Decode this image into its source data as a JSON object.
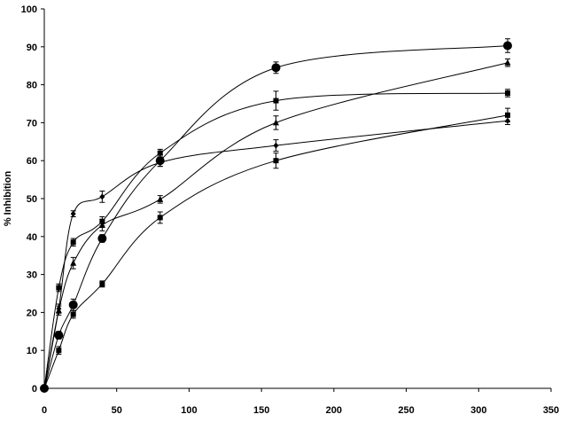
{
  "chart_data": {
    "type": "line",
    "y_label": "% Inhibition",
    "xlim": [
      0,
      350
    ],
    "xticks": [
      0,
      50,
      100,
      150,
      200,
      250,
      300,
      350
    ],
    "ylim": [
      0,
      100
    ],
    "yticks": [
      0,
      10,
      20,
      30,
      40,
      50,
      60,
      70,
      80,
      90,
      100
    ],
    "grid": false,
    "smooth": true,
    "x": [
      0,
      10,
      20,
      40,
      80,
      160,
      320
    ],
    "series": [
      {
        "color": "#000000",
        "marker": "diamond",
        "values": [
          0,
          21,
          46,
          50.5,
          59.5,
          64,
          70.5
        ],
        "errors": [
          0.5,
          1.2,
          0.8,
          1.5,
          1,
          1.5,
          1
        ]
      },
      {
        "color": "#000000",
        "marker": "square",
        "values": [
          0,
          26.5,
          38.5,
          44,
          62,
          75.8,
          77.8
        ],
        "errors": [
          0.5,
          1,
          1,
          1.2,
          1,
          2.5,
          1
        ]
      },
      {
        "color": "#000000",
        "marker": "circle",
        "values": [
          0,
          14,
          22,
          39.5,
          60,
          84.5,
          90.3
        ],
        "errors": [
          0.5,
          1,
          1.5,
          1,
          1.5,
          1.5,
          1.8
        ]
      },
      {
        "color": "#000000",
        "marker": "triangle",
        "values": [
          0,
          20.5,
          33,
          43,
          49.8,
          70,
          85.8
        ],
        "errors": [
          0.5,
          1.2,
          1.5,
          1.5,
          1,
          1.8,
          1
        ]
      },
      {
        "color": "#000000",
        "marker": "square",
        "values": [
          0,
          10,
          19.5,
          27.5,
          45,
          60,
          72
        ],
        "errors": [
          0.5,
          1,
          1,
          0.8,
          1.5,
          2,
          1.8
        ]
      }
    ]
  }
}
